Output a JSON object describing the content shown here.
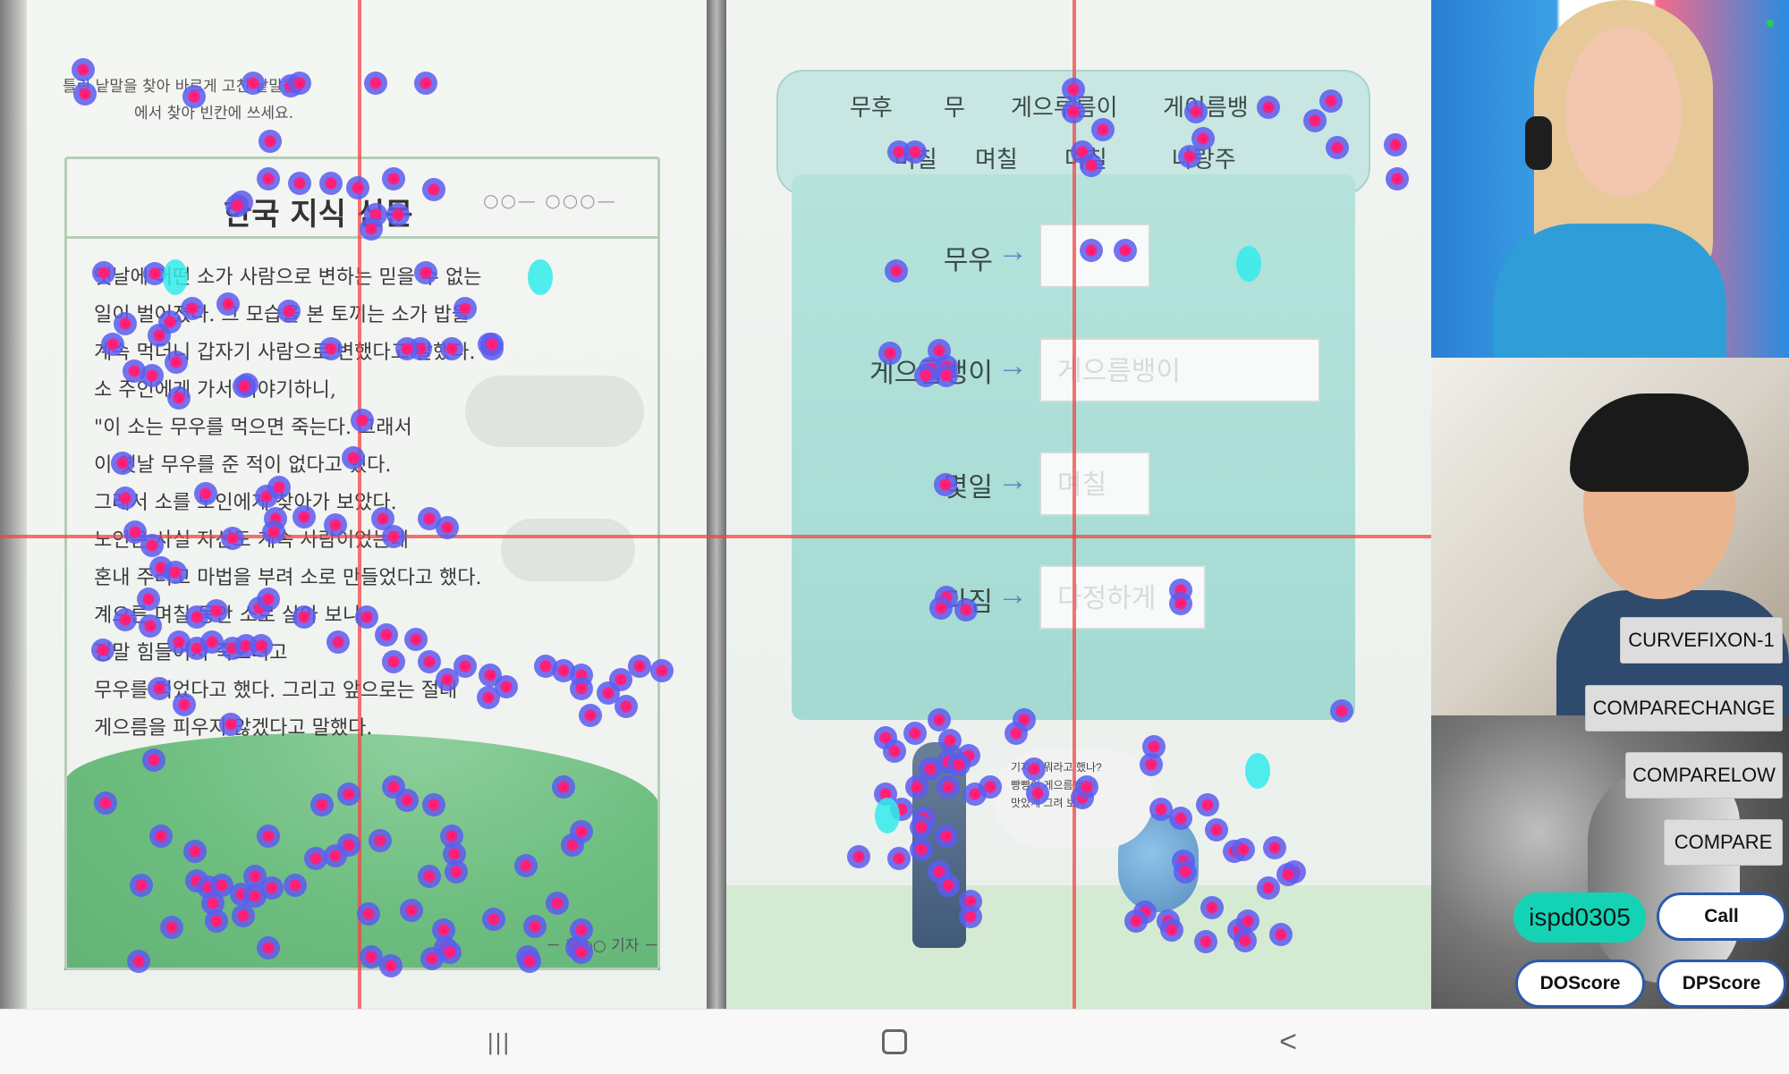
{
  "document": {
    "instruction_line1": "틀린 낱말을 찾아 바르게 고친 낱말을",
    "instruction_line2": "에서 찾아 빈칸에 쓰세요.",
    "news_title": "한국 지식 신문",
    "news_dots": "○○— ○○○—",
    "body_lines": [
      "옛날에 어떤 소가 사람으로 변하는 믿을 수 없는",
      "일이 벌어졌다. 그 모습을 본 토끼는 소가 밥을",
      "계속 먹더니 갑자기 사람으로 변했다고 말했다.",
      "소 주인에게 가서 이야기하니,",
      "\"이 소는 무우를 먹으면 죽는다. 그래서",
      "이 옛날 무우를 준 적이 없다고 했다.",
      "그래서 소를 노인에게 찾아가 보았다.",
      "노인은 사실 자신도 계속 사람이었는데",
      "혼내 주려고 마법을 부려 소로 만들었다고 했다.",
      "계으른 며칠 동안 소로 살아 보니",
      "정말 힘들어서 죽으려고",
      "무우를 먹었다고 했다. 그리고 앞으로는 절대",
      "게으름을 피우지 않겠다고 말했다."
    ],
    "reporter": "－ 한○○ 기자 －",
    "top_words": [
      "무후",
      "무",
      "게으루름이",
      "게이름뱅",
      "며칠",
      "며칠",
      "며칠",
      "나랑주"
    ],
    "rows": [
      {
        "label": "무우",
        "arrow": "→",
        "hint": ""
      },
      {
        "label": "게으름뱅이",
        "arrow": "→",
        "hint": "게으름뱅이"
      },
      {
        "label": "몇일",
        "arrow": "→",
        "hint": "며칠"
      },
      {
        "label": "다짐",
        "arrow": "→",
        "hint": "다정하게"
      }
    ],
    "speech_bubble": [
      "기자가 뭐라고 했나?",
      "빵빵이 게으름뱅이!",
      "맛있게 그려 보자."
    ]
  },
  "video": {
    "buttons": {
      "curvefixon": "CURVEFIXON-1",
      "comparechange": "COMPARECHANGE",
      "comparelow": "COMPARELOW",
      "compare": "COMPARE"
    },
    "user_id": "ispd0305",
    "call": "Call",
    "doscore": "DOScore",
    "dpscore": "DPScore"
  },
  "nav": {
    "recents": "|||",
    "home": "○",
    "back": "<"
  },
  "colors": {
    "gaze_outer": "#5c5cf0",
    "gaze_inner": "#ff1f78",
    "crosshair": "#f04646",
    "badge": "#14d3b4",
    "pill_border": "#2d5aa8"
  }
}
